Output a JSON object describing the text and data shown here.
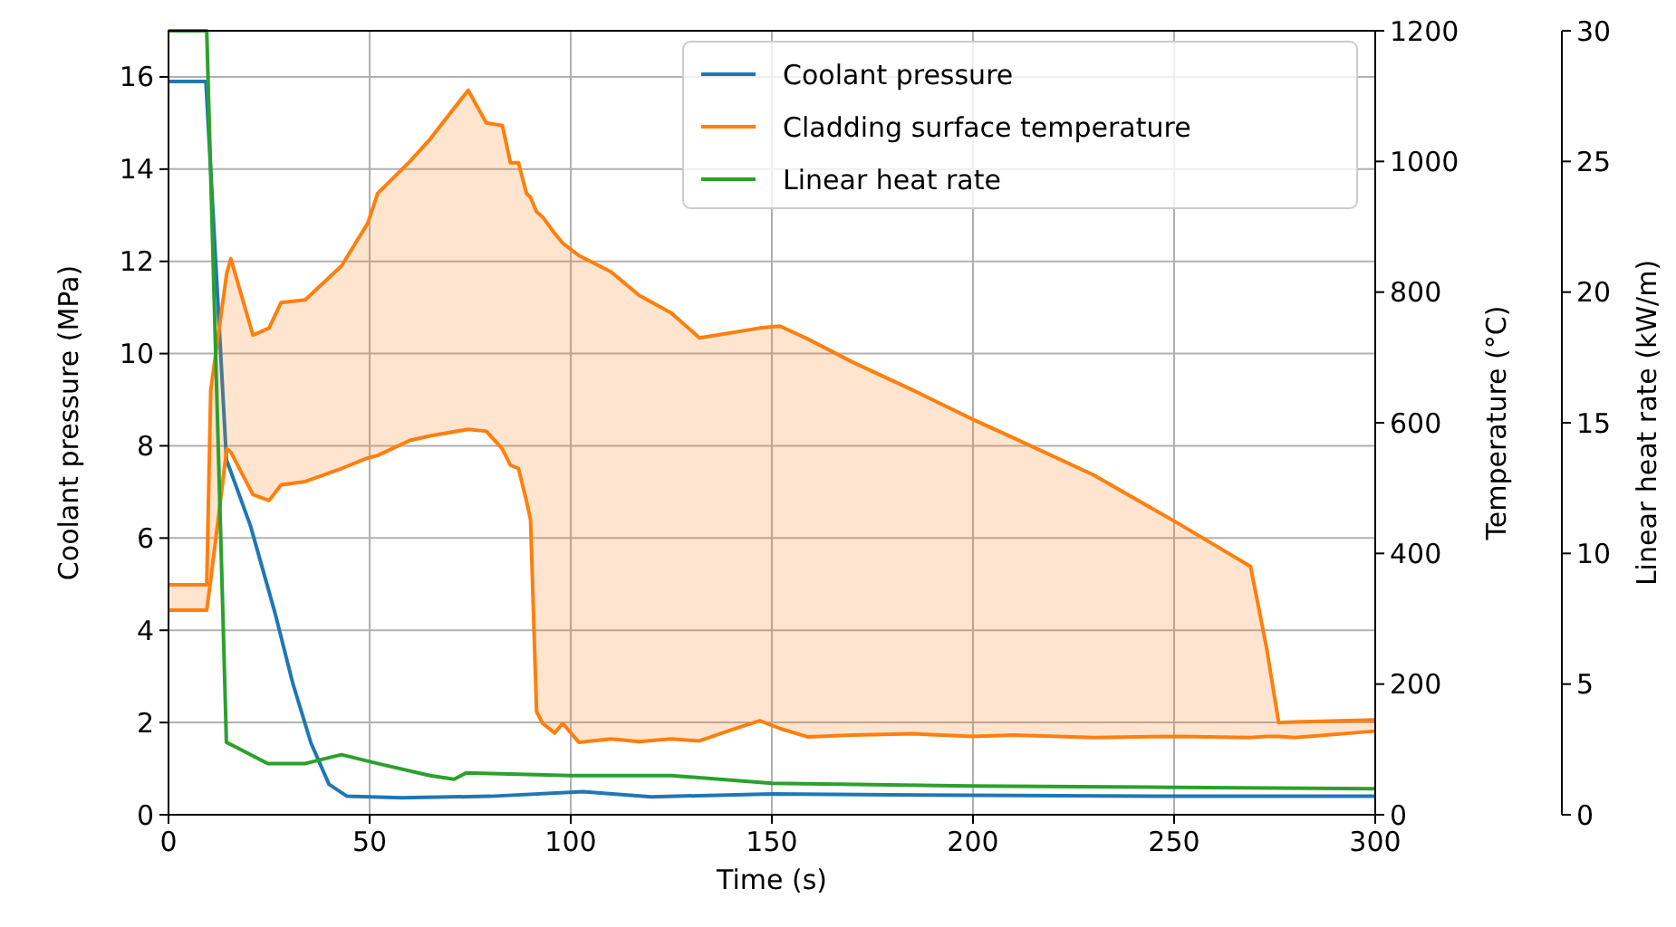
{
  "chart_data": {
    "type": "line",
    "xlabel": "Time (s)",
    "ylabel": "Coolant pressure (MPa)",
    "y2label": "Temperature (°C)",
    "y3label": "Linear heat rate (kW/m)",
    "xlim": [
      0,
      300
    ],
    "xticks": [
      0,
      50,
      100,
      150,
      200,
      250,
      300
    ],
    "ylim": [
      0,
      17
    ],
    "yticks": [
      0,
      2,
      4,
      6,
      8,
      10,
      12,
      14,
      16
    ],
    "y2lim": [
      0,
      1200
    ],
    "y2ticks": [
      0,
      200,
      400,
      600,
      800,
      1000,
      1200
    ],
    "y3lim": [
      0,
      30
    ],
    "y3ticks": [
      0,
      5,
      10,
      15,
      20,
      25,
      30
    ],
    "grid": true,
    "legend": "top right",
    "line_style": "solid",
    "series": [
      {
        "name": "Coolant pressure",
        "color": "#1f77b4",
        "axis": "y",
        "x": [
          0,
          9.3,
          14.4,
          20.4,
          26.4,
          30.9,
          35.4,
          39.9,
          44.4,
          58,
          80,
          103,
          120,
          150,
          200,
          250,
          300
        ],
        "values": [
          15.9,
          15.9,
          7.7,
          6.26,
          4.4,
          2.85,
          1.56,
          0.66,
          0.4,
          0.37,
          0.4,
          0.5,
          0.39,
          0.45,
          0.42,
          0.4,
          0.4
        ]
      },
      {
        "name": "Cladding surface temperature",
        "color": "#ff7f0e",
        "axis": "y2",
        "x": [
          0,
          9.5,
          10.5,
          14.5,
          15.5,
          21,
          25,
          28,
          34,
          43,
          49.5,
          52,
          60,
          65,
          74.5,
          79,
          83,
          85,
          87,
          89,
          90,
          91.5,
          93,
          96,
          98,
          102,
          110,
          117,
          125,
          132,
          140,
          147,
          152,
          159,
          170,
          185,
          200,
          210,
          230,
          251,
          269,
          273,
          276,
          280,
          300
        ],
        "values": [
          352,
          352,
          650,
          830,
          851,
          734,
          745,
          784,
          788,
          840,
          905,
          951,
          1000,
          1034,
          1109,
          1059,
          1055,
          998,
          998,
          951,
          945,
          923,
          915,
          890,
          875,
          856,
          831,
          795,
          768,
          730,
          738,
          745,
          748,
          728,
          693,
          650,
          605,
          577,
          520,
          446,
          380,
          255,
          141,
          142,
          145
        ],
        "upper": [
          352,
          352,
          650,
          830,
          851,
          734,
          745,
          784,
          788,
          840,
          905,
          951,
          1000,
          1034,
          1109,
          1059,
          1055,
          998,
          998,
          951,
          945,
          923,
          915,
          890,
          875,
          856,
          831,
          795,
          768,
          730,
          738,
          745,
          748,
          728,
          693,
          650,
          605,
          577,
          520,
          446,
          380,
          255,
          141,
          142,
          145
        ],
        "lower": [
          313,
          313,
          360,
          560,
          555,
          490,
          481,
          505,
          510,
          530,
          546,
          550,
          573,
          580,
          590,
          587,
          560,
          535,
          530,
          480,
          452,
          158,
          140,
          125,
          140,
          111,
          116,
          112,
          116,
          113,
          130,
          144,
          132,
          119,
          122,
          124,
          120,
          122,
          118,
          120,
          118,
          120,
          120,
          118,
          128
        ]
      },
      {
        "color": "#ff7f0e",
        "axis": "y2",
        "x": [
          0,
          9.5,
          10.5,
          14.5,
          15.5,
          21,
          25,
          28,
          34,
          43,
          49.5,
          52,
          60,
          65,
          74.5,
          79,
          83,
          85,
          87,
          89,
          90,
          91.5,
          93,
          96,
          98,
          102,
          110,
          117,
          125,
          132,
          140,
          147,
          152,
          159,
          170,
          185,
          200,
          210,
          230,
          251,
          269,
          273,
          276,
          280,
          300
        ],
        "values": [
          313,
          313,
          360,
          560,
          555,
          490,
          481,
          505,
          510,
          530,
          546,
          550,
          573,
          580,
          590,
          587,
          560,
          535,
          530,
          480,
          452,
          158,
          140,
          125,
          140,
          111,
          116,
          112,
          116,
          113,
          130,
          144,
          132,
          119,
          122,
          124,
          120,
          122,
          118,
          120,
          118,
          120,
          120,
          118,
          128
        ]
      },
      {
        "name": "Linear heat rate",
        "color": "#2ca02c",
        "axis": "y3",
        "x": [
          0,
          9.5,
          14.4,
          24.7,
          34,
          43,
          52,
          65,
          71,
          74,
          100,
          125,
          150,
          200,
          250,
          300
        ],
        "values": [
          30,
          30,
          2.77,
          1.96,
          1.96,
          2.3,
          1.96,
          1.5,
          1.36,
          1.6,
          1.5,
          1.5,
          1.2,
          1.1,
          1.05,
          1.0
        ]
      }
    ]
  }
}
